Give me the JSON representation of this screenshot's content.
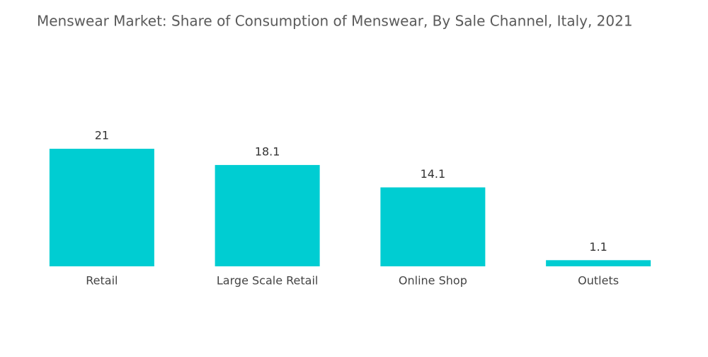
{
  "chart_data": {
    "type": "bar",
    "title": "Menswear Market: Share of Consumption of Menswear, By Sale Channel, Italy, 2021",
    "categories": [
      "Retail",
      "Large Scale Retail",
      "Online Shop",
      "Outlets"
    ],
    "values": [
      21,
      18.1,
      14.1,
      1.1
    ],
    "color": "#00cdd2"
  }
}
